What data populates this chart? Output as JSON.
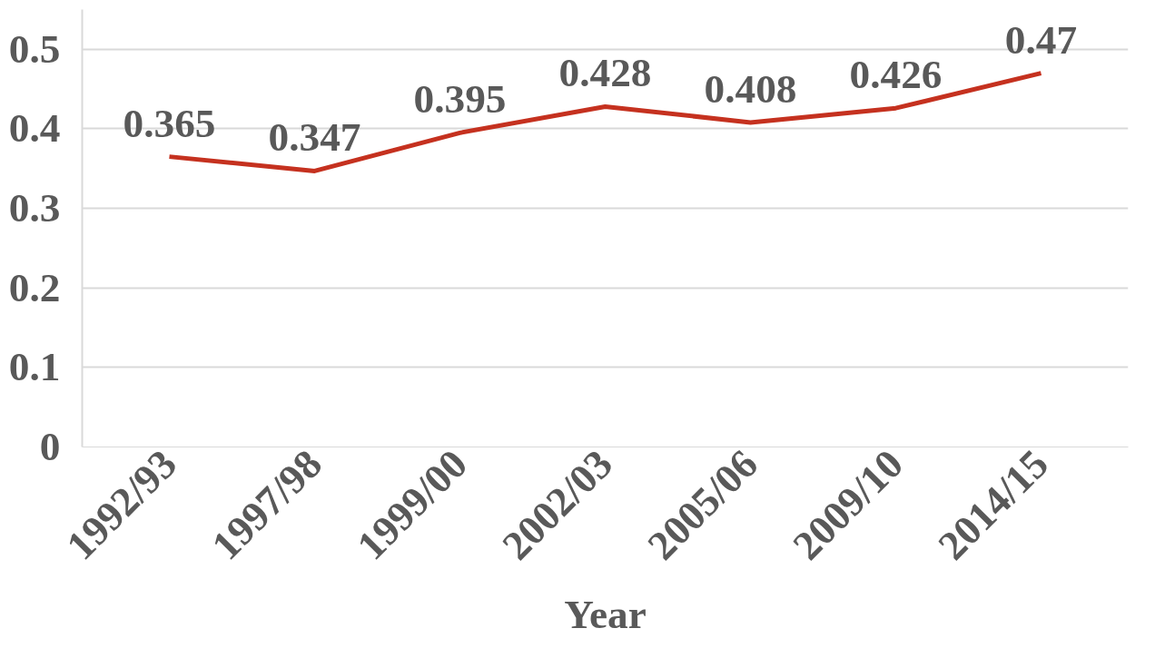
{
  "chart_data": {
    "type": "line",
    "xlabel": "Year",
    "categories": [
      "1992/93",
      "1997/98",
      "1999/00",
      "2002/03",
      "2005/06",
      "2009/10",
      "2014/15"
    ],
    "series": [
      {
        "color": "#c5311f",
        "values": [
          0.365,
          0.347,
          0.395,
          0.428,
          0.408,
          0.426,
          0.47
        ]
      }
    ],
    "ylim": [
      0,
      0.55
    ],
    "yticks": [
      0,
      0.1,
      0.2,
      0.3,
      0.4,
      0.5
    ],
    "grid": "y",
    "data_labels": true,
    "marker": "none",
    "line_style": "solid"
  }
}
